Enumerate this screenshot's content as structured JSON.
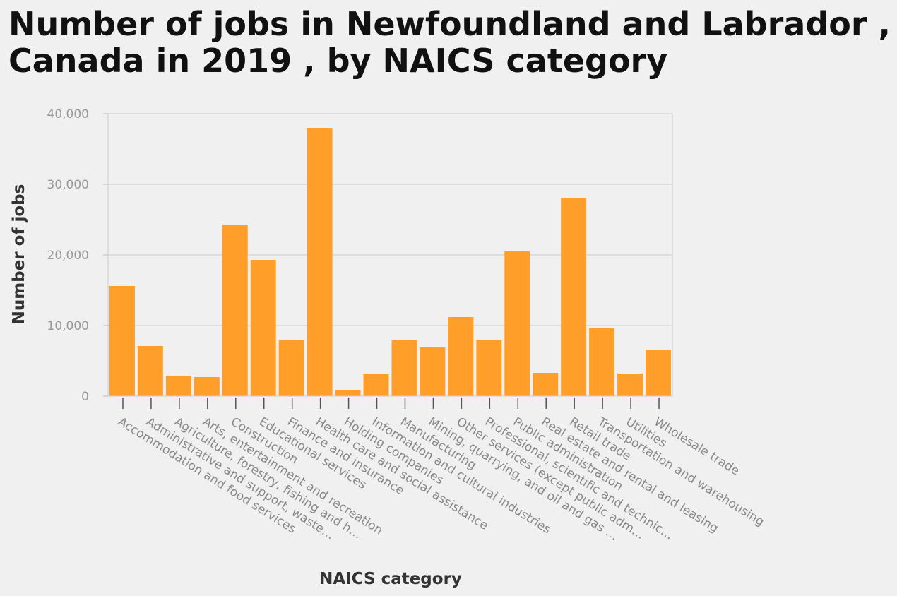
{
  "chart_data": {
    "type": "bar",
    "title": "Number of jobs in Newfoundland and Labrador , Canada in 2019 , by NAICS category",
    "xlabel": "NAICS category",
    "ylabel": "Number of jobs",
    "ylim": [
      0,
      40000
    ],
    "yticks": [
      0,
      10000,
      20000,
      30000,
      40000
    ],
    "ytick_labels": [
      "0",
      "10,000",
      "20,000",
      "30,000",
      "40,000"
    ],
    "grid": true,
    "bar_color": "#ff9f2a",
    "categories": [
      "Accommodation and food services",
      "Administrative and support, waste…",
      "Agriculture, forestry, fishing and h…",
      "Arts, entertainment and recreation",
      "Construction",
      "Educational services",
      "Finance and insurance",
      "Health care and social assistance",
      "Holding companies",
      "Information and cultural industries",
      "Manufacturing",
      "Mining, quarrying, and oil and gas …",
      "Other services (except public adm…",
      "Professional, scientific and technic…",
      "Public administration",
      "Real estate and rental and leasing",
      "Retail trade",
      "Transportation and warehousing",
      "Utilities",
      "Wholesale trade"
    ],
    "values": [
      15600,
      7100,
      2900,
      2700,
      24300,
      19300,
      7900,
      38000,
      900,
      3100,
      7900,
      6900,
      11200,
      7900,
      20500,
      3300,
      28100,
      9600,
      3200,
      6500
    ]
  }
}
